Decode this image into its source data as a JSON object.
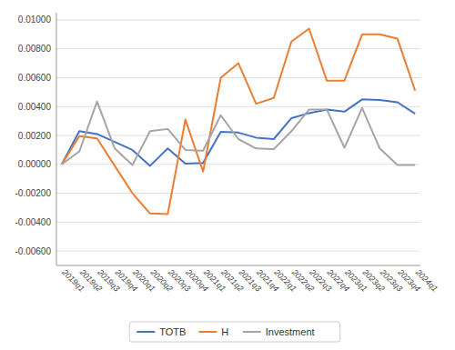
{
  "chart_data": {
    "type": "line",
    "categories": [
      "2019q1",
      "2019q2",
      "2019q3",
      "2019q4",
      "2020q1",
      "2020q2",
      "2020q3",
      "2020q4",
      "2021q1",
      "2021q2",
      "2021q3",
      "2021q4",
      "2022q1",
      "2022q2",
      "2022q3",
      "2022q4",
      "2023q1",
      "2023q2",
      "2023q3",
      "2023q4",
      "2024q1"
    ],
    "series": [
      {
        "name": "TOTB",
        "color": "#4472C4",
        "values": [
          0.0,
          0.0023,
          0.0021,
          0.00155,
          0.001,
          -0.0001,
          0.0011,
          5e-05,
          0.0001,
          0.00225,
          0.0022,
          0.00185,
          0.00175,
          0.0032,
          0.00355,
          0.0038,
          0.00365,
          0.0045,
          0.00445,
          0.0043,
          0.0035
        ]
      },
      {
        "name": "H",
        "color": "#ED7D31",
        "values": [
          0.0,
          0.00195,
          0.0018,
          -0.0001,
          -0.002,
          -0.0034,
          -0.00345,
          0.0031,
          -0.0005,
          0.006,
          0.007,
          0.0042,
          0.0046,
          0.0085,
          0.0094,
          0.0058,
          0.0058,
          0.009,
          0.009,
          0.0087,
          0.0051
        ]
      },
      {
        "name": "Investment",
        "color": "#A5A5A5",
        "values": [
          0.0,
          0.0009,
          0.00435,
          0.0011,
          -5e-05,
          0.0023,
          0.00245,
          0.001,
          0.00095,
          0.0034,
          0.00175,
          0.0011,
          0.00105,
          0.0023,
          0.0038,
          0.0038,
          0.00115,
          0.0039,
          0.0011,
          -5e-05,
          -5e-05
        ]
      }
    ],
    "ylim": [
      -0.007,
      0.0105
    ],
    "yticks": [
      {
        "value": -0.006,
        "label": "-0.00600"
      },
      {
        "value": -0.004,
        "label": "-0.00400"
      },
      {
        "value": -0.002,
        "label": "-0.00200"
      },
      {
        "value": 0.0,
        "label": "0.00000"
      },
      {
        "value": 0.002,
        "label": "0.00200"
      },
      {
        "value": 0.004,
        "label": "0.00400"
      },
      {
        "value": 0.006,
        "label": "0.00600"
      },
      {
        "value": 0.008,
        "label": "0.00800"
      },
      {
        "value": 0.01,
        "label": "0.01000"
      }
    ],
    "grid": true,
    "legend": "bottom"
  }
}
